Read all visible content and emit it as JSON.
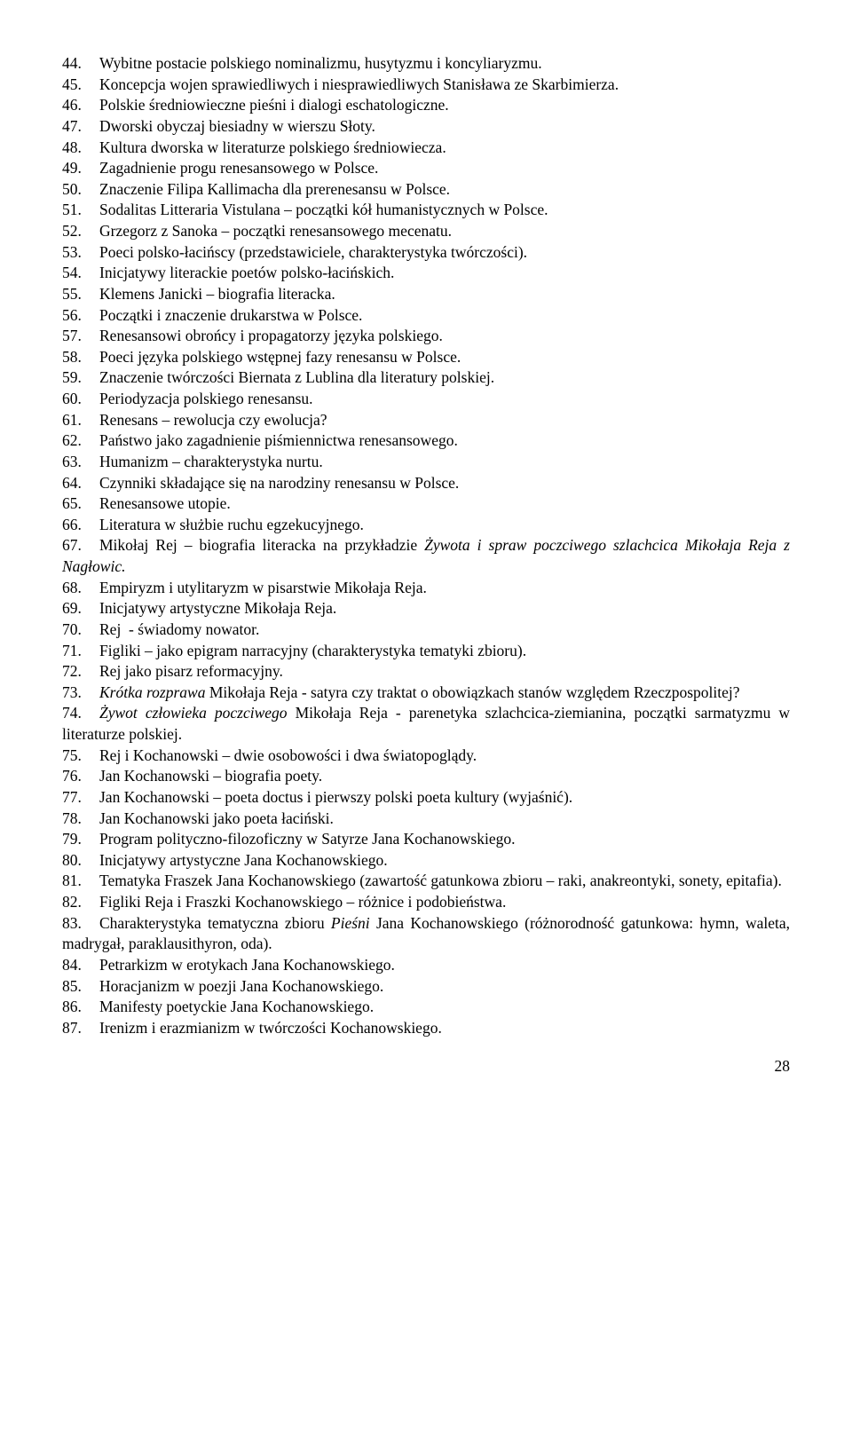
{
  "items": [
    {
      "num": "44.",
      "html": "Wybitne postacie polskiego nominalizmu, husytyzmu i koncyliaryzmu."
    },
    {
      "num": "45.",
      "html": "Koncepcja wojen sprawiedliwych i niesprawiedliwych Stanisława ze Skarbimierza."
    },
    {
      "num": "46.",
      "html": "Polskie średniowieczne pieśni i dialogi eschatologiczne."
    },
    {
      "num": "47.",
      "html": "Dworski obyczaj biesiadny w wierszu Słoty."
    },
    {
      "num": "48.",
      "html": "Kultura dworska w literaturze polskiego średniowiecza."
    },
    {
      "num": "49.",
      "html": "Zagadnienie progu renesansowego w Polsce."
    },
    {
      "num": "50.",
      "html": "Znaczenie Filipa Kallimacha dla prerenesansu w Polsce."
    },
    {
      "num": "51.",
      "html": "Sodalitas Litteraria Vistulana – początki kół humanistycznych w Polsce."
    },
    {
      "num": "52.",
      "html": "Grzegorz z Sanoka – początki renesansowego mecenatu."
    },
    {
      "num": "53.",
      "html": "Poeci polsko-łacińscy (przedstawiciele, charakterystyka twórczości)."
    },
    {
      "num": "54.",
      "html": "Inicjatywy literackie poetów polsko-łacińskich."
    },
    {
      "num": "55.",
      "html": "Klemens Janicki – biografia literacka."
    },
    {
      "num": "56.",
      "html": "Początki i znaczenie drukarstwa w Polsce."
    },
    {
      "num": "57.",
      "html": "Renesansowi obrońcy i propagatorzy języka polskiego."
    },
    {
      "num": "58.",
      "html": "Poeci języka polskiego wstępnej fazy renesansu w Polsce."
    },
    {
      "num": "59.",
      "html": "Znaczenie twórczości Biernata z Lublina dla literatury polskiej."
    },
    {
      "num": "60.",
      "html": "Periodyzacja polskiego renesansu."
    },
    {
      "num": "61.",
      "html": "Renesans – rewolucja czy ewolucja?"
    },
    {
      "num": "62.",
      "html": "Państwo jako zagadnienie piśmiennictwa renesansowego."
    },
    {
      "num": "63.",
      "html": "Humanizm – charakterystyka nurtu."
    },
    {
      "num": "64.",
      "html": "Czynniki składające się na narodziny renesansu w Polsce."
    },
    {
      "num": "65.",
      "html": "Renesansowe utopie."
    },
    {
      "num": "66.",
      "html": "Literatura w służbie ruchu egzekucyjnego."
    },
    {
      "num": "67.",
      "html": "Mikołaj Rej – biografia literacka na przykładzie <em>Żywota i spraw poczciwego szlachcica Mikołaja Reja z Nagłowic.</em>"
    },
    {
      "num": "68.",
      "html": "Empiryzm i utylitaryzm w pisarstwie Mikołaja Reja."
    },
    {
      "num": "69.",
      "html": "Inicjatywy artystyczne Mikołaja Reja."
    },
    {
      "num": "70.",
      "html": "Rej&nbsp; - świadomy nowator."
    },
    {
      "num": "71.",
      "html": "Figliki – jako epigram narracyjny (charakterystyka tematyki zbioru)."
    },
    {
      "num": "72.",
      "html": "Rej jako pisarz reformacyjny."
    },
    {
      "num": "73.",
      "html": "<em>Krótka rozprawa</em> Mikołaja Reja - satyra czy traktat o obowiązkach stanów względem Rzeczpospolitej?"
    },
    {
      "num": "74.",
      "html": "<em>Żywot człowieka poczciwego</em> Mikołaja Reja - parenetyka szlachcica-ziemianina, początki sarmatyzmu w literaturze polskiej."
    },
    {
      "num": "75.",
      "html": "Rej i Kochanowski – dwie osobowości i dwa światopoglądy."
    },
    {
      "num": "76.",
      "html": "Jan Kochanowski – biografia poety."
    },
    {
      "num": "77.",
      "html": "Jan Kochanowski – poeta doctus i pierwszy polski poeta kultury (wyjaśnić)."
    },
    {
      "num": "78.",
      "html": "Jan Kochanowski jako poeta łaciński."
    },
    {
      "num": "79.",
      "html": "Program polityczno-filozoficzny w Satyrze Jana Kochanowskiego."
    },
    {
      "num": "80.",
      "html": "Inicjatywy artystyczne Jana Kochanowskiego."
    },
    {
      "num": "81.",
      "html": "Tematyka Fraszek Jana Kochanowskiego (zawartość gatunkowa zbioru – raki, anakreontyki, sonety, epitafia)."
    },
    {
      "num": "82.",
      "html": "Figliki Reja i Fraszki Kochanowskiego – różnice i podobieństwa."
    },
    {
      "num": "83.",
      "html": "Charakterystyka tematyczna zbioru <em>Pieśni</em> Jana Kochanowskiego (różnorodność gatunkowa: hymn, waleta, madrygał, paraklausithyron, oda)."
    },
    {
      "num": "84.",
      "html": "Petrarkizm w erotykach Jana Kochanowskiego."
    },
    {
      "num": "85.",
      "html": "Horacjanizm w poezji Jana Kochanowskiego."
    },
    {
      "num": "86.",
      "html": "Manifesty poetyckie Jana Kochanowskiego."
    },
    {
      "num": "87.",
      "html": "Irenizm i erazmianizm w twórczości Kochanowskiego."
    }
  ],
  "page_number": "28"
}
